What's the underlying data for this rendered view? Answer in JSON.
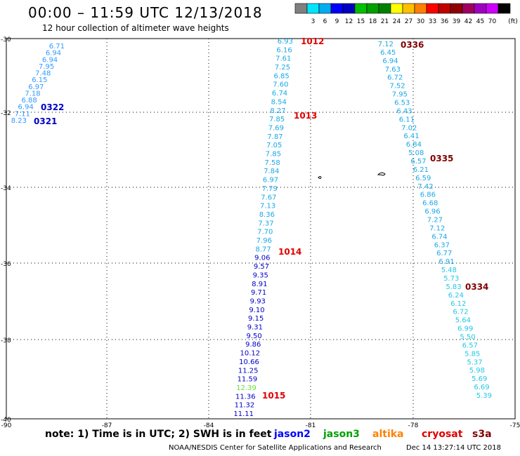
{
  "header": {
    "title": "00:00 – 11:59 UTC 12/13/2018",
    "subtitle": "12 hour collection of altimeter wave heights"
  },
  "colorbar": {
    "unit_label": "(ft)",
    "colors": [
      "#808080",
      "#00e5ff",
      "#00aeef",
      "#0000ff",
      "#0000c0",
      "#00c000",
      "#00a000",
      "#008000",
      "#ffff00",
      "#ffc000",
      "#ff8000",
      "#ff0000",
      "#c00000",
      "#900000",
      "#a00060",
      "#a000c0",
      "#d000ff",
      "#000000"
    ],
    "labels": [
      "3",
      "6",
      "9",
      "12",
      "15",
      "18",
      "21",
      "24",
      "27",
      "30",
      "33",
      "36",
      "39",
      "42",
      "45",
      "70"
    ]
  },
  "axes": {
    "lat_labels": [
      "-30",
      "-32",
      "-34",
      "-36",
      "-38",
      "-40"
    ],
    "lon_labels": [
      "-90",
      "-87",
      "-84",
      "-81",
      "-78",
      "-75"
    ]
  },
  "tracks": [
    {
      "color": "#3399ff",
      "values": [
        "6.71",
        "6.94",
        "6.94",
        "7.95",
        "7.48",
        "6.15",
        "6.97",
        "7.18",
        "6.88",
        "6.94",
        "7.11",
        "8.23"
      ],
      "time_labels": [
        {
          "text": "0322",
          "color": "#0000c8"
        },
        {
          "text": "0321",
          "color": "#0000c8"
        }
      ]
    },
    {
      "color": "#1aa8e6",
      "values": [
        "6.93",
        "6.16",
        "7.61",
        "7.25",
        "6.85",
        "7.60",
        "6.74",
        "8.54",
        "8.27",
        "7.85",
        "7.69",
        "7.87",
        "7.05",
        "7.85",
        "7.58",
        "7.84",
        "6.97",
        "7.79",
        "7.67",
        "7.13",
        "8.36",
        "7.37",
        "7.70",
        "7.96",
        "8.77",
        "9.06",
        "9.57",
        "9.35",
        "8.91",
        "9.71",
        "9.93",
        "9.10",
        "9.15",
        "9.31",
        "9.50",
        "9.86",
        "10.12",
        "10.66",
        "11.25",
        "11.59",
        "12.39",
        "11.36",
        "11.32",
        "11.11"
      ],
      "time_labels": [
        {
          "text": "1012",
          "color": "#e00000"
        },
        {
          "text": "1013",
          "color": "#e00000"
        },
        {
          "text": "1014",
          "color": "#e00000"
        },
        {
          "text": "1015",
          "color": "#e00000"
        }
      ]
    },
    {
      "color": "#1aa8e6",
      "values": [
        "7.12",
        "6.45",
        "6.94",
        "7.63",
        "6.72",
        "7.52",
        "7.95",
        "6.53",
        "6.43",
        "6.11",
        "7.02",
        "6.41",
        "6.84",
        "5.08",
        "6.57",
        "6.21",
        "6.59",
        "7.42",
        "6.86",
        "6.68",
        "6.96",
        "7.27",
        "7.12",
        "6.74",
        "6.37",
        "6.77",
        "6.91",
        "5.48",
        "5.73",
        "5.83",
        "6.24",
        "6.12",
        "6.72",
        "5.64",
        "6.99",
        "5.50",
        "6.57",
        "5.85",
        "5.37",
        "5.98",
        "5.69",
        "6.69",
        "5.39"
      ],
      "time_labels": [
        {
          "text": "0336",
          "color": "#800000"
        },
        {
          "text": "0335",
          "color": "#800000"
        },
        {
          "text": "0334",
          "color": "#800000"
        }
      ]
    }
  ],
  "note": {
    "text": "note:  1) Time is in UTC;  2) SWH is in feet",
    "legend": [
      {
        "name": "jason2",
        "color": "#0000ff"
      },
      {
        "name": "jason3",
        "color": "#00a000"
      },
      {
        "name": "altika",
        "color": "#ff8000"
      },
      {
        "name": "cryosat",
        "color": "#e00000"
      },
      {
        "name": "s3a",
        "color": "#800000"
      }
    ]
  },
  "footer": {
    "left": "NOAA/NESDIS Center for Satellite Applications and Research",
    "right": "Dec 14 13:27:14 UTC 2018"
  }
}
